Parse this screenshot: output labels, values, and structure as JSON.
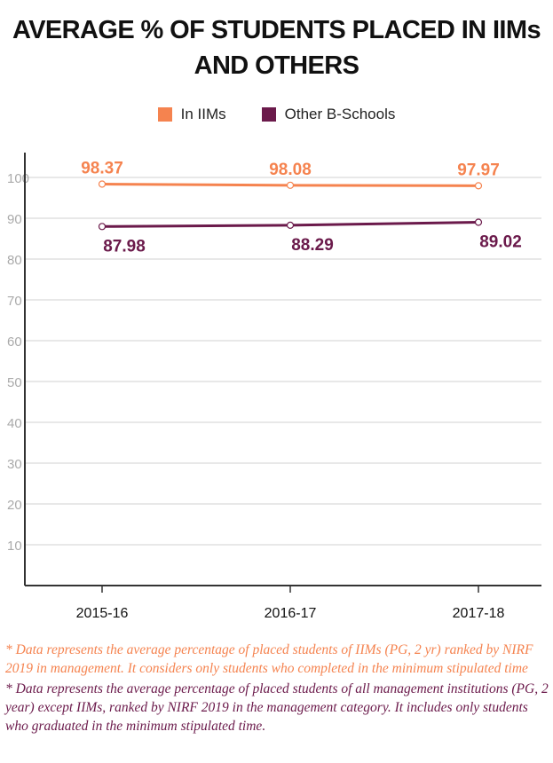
{
  "title": {
    "line1": "AVERAGE % OF STUDENTS PLACED IN IIMs",
    "line2": "AND OTHERS"
  },
  "legend": [
    {
      "label": "In IIMs",
      "color": "#f5834f"
    },
    {
      "label": "Other B-Schools",
      "color": "#6b1a4b"
    }
  ],
  "chart_data": {
    "type": "line",
    "categories": [
      "2015-16",
      "2016-17",
      "2017-18"
    ],
    "series": [
      {
        "name": "In IIMs",
        "values": [
          98.37,
          98.08,
          97.97
        ],
        "color": "#f5834f",
        "labels": [
          "98.37",
          "98.08",
          "97.97"
        ]
      },
      {
        "name": "Other B-Schools",
        "values": [
          87.98,
          88.29,
          89.02
        ],
        "color": "#6b1a4b",
        "labels": [
          "87.98",
          "88.29",
          "89.02"
        ]
      }
    ],
    "yticks": [
      "10",
      "20",
      "30",
      "40",
      "50",
      "60",
      "70",
      "80",
      "90",
      "100"
    ],
    "ylim": [
      0,
      100
    ],
    "grid": true,
    "legend_position": "top-center"
  },
  "notes": [
    "* Data represents the average percentage of placed students of IIMs (PG, 2 yr) ranked by NIRF 2019 in management. It considers only students who completed in the  minimum stipulated time",
    "* Data represents the average percentage of placed students of all management institutions (PG, 2 year) except IIMs, ranked by NIRF 2019  in the management category. It includes only students who graduated in the minimum stipulated time."
  ]
}
